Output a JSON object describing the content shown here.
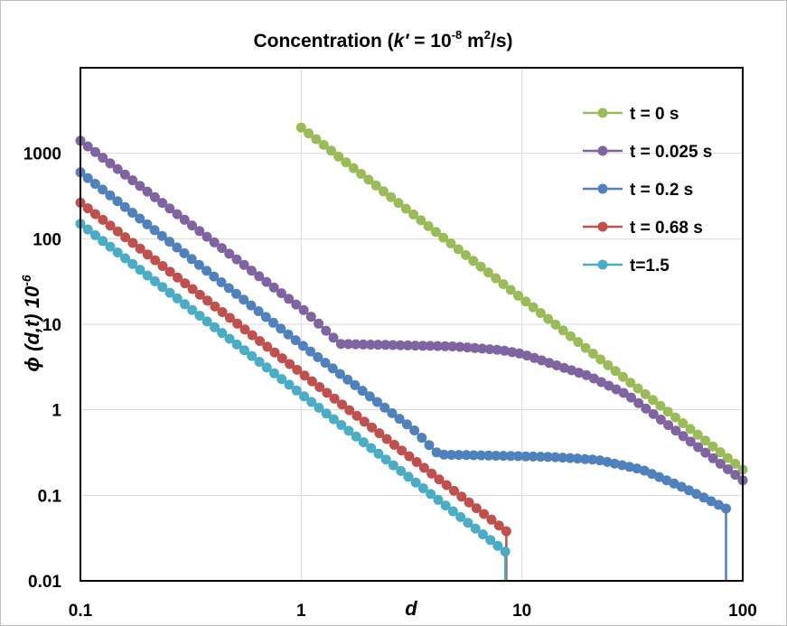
{
  "chart_data": {
    "type": "scatter",
    "scale": {
      "x": "log",
      "y": "log"
    },
    "title": {
      "prefix": "Concentration (",
      "k": "k′",
      "eq": " = 10",
      "exp1": "-8",
      "unit": " m",
      "exp2": "2",
      "suffix": "/s)"
    },
    "xlabel": "d",
    "ylabel": {
      "main": "ϕ (d,t) 10",
      "exp": "-6"
    },
    "xlim": [
      0.1,
      100
    ],
    "ylim": [
      0.01,
      10000
    ],
    "x_ticks": [
      {
        "value": 0.1,
        "label": "0.1"
      },
      {
        "value": 1,
        "label": "1"
      },
      {
        "value": 10,
        "label": "10"
      },
      {
        "value": 100,
        "label": "100"
      }
    ],
    "y_ticks": [
      {
        "value": 0.01,
        "label": "0.01"
      },
      {
        "value": 0.1,
        "label": "0.1"
      },
      {
        "value": 1,
        "label": "1"
      },
      {
        "value": 10,
        "label": "10"
      },
      {
        "value": 100,
        "label": "100"
      },
      {
        "value": 1000,
        "label": "1000"
      }
    ],
    "grid": true,
    "legend_position": "top-right",
    "series": [
      {
        "name": "t = 0 s",
        "color": "#9BBB59",
        "x_start": 1.0,
        "x_end": 100,
        "points": 60,
        "knots": [
          [
            1,
            2000
          ],
          [
            100,
            0.2
          ]
        ]
      },
      {
        "name": "t = 0.025 s",
        "color": "#8064A2",
        "x_start": 0.1,
        "x_end": 100,
        "points": 90,
        "knots": [
          [
            0.1,
            1400
          ],
          [
            1.05,
            14
          ],
          [
            1.5,
            5.9
          ],
          [
            5,
            5.5
          ],
          [
            8,
            5.0
          ],
          [
            10,
            4.5
          ],
          [
            20,
            2.5
          ],
          [
            30,
            1.5
          ],
          [
            100,
            0.15
          ]
        ]
      },
      {
        "name": "t = 0.2 s",
        "color": "#4F81BD",
        "x_start": 0.1,
        "x_end": 84,
        "points": 88,
        "knots": [
          [
            0.1,
            600
          ],
          [
            1,
            5.8
          ],
          [
            3.2,
            0.6
          ],
          [
            4.2,
            0.3
          ],
          [
            8,
            0.29
          ],
          [
            14,
            0.28
          ],
          [
            22,
            0.26
          ],
          [
            35,
            0.2
          ],
          [
            55,
            0.12
          ],
          [
            84,
            0.07
          ]
        ],
        "drop_at": 84
      },
      {
        "name": "t = 0.68 s",
        "color": "#C0504D",
        "x_start": 0.1,
        "x_end": 8.5,
        "points": 58,
        "knots": [
          [
            0.1,
            265
          ],
          [
            8.5,
            0.038
          ]
        ],
        "drop_at": 8.5
      },
      {
        "name": "t=1.5",
        "color": "#4BACC6",
        "x_start": 0.1,
        "x_end": 8.4,
        "points": 58,
        "knots": [
          [
            0.1,
            150
          ],
          [
            8.4,
            0.022
          ]
        ],
        "drop_at": 8.4
      }
    ]
  }
}
